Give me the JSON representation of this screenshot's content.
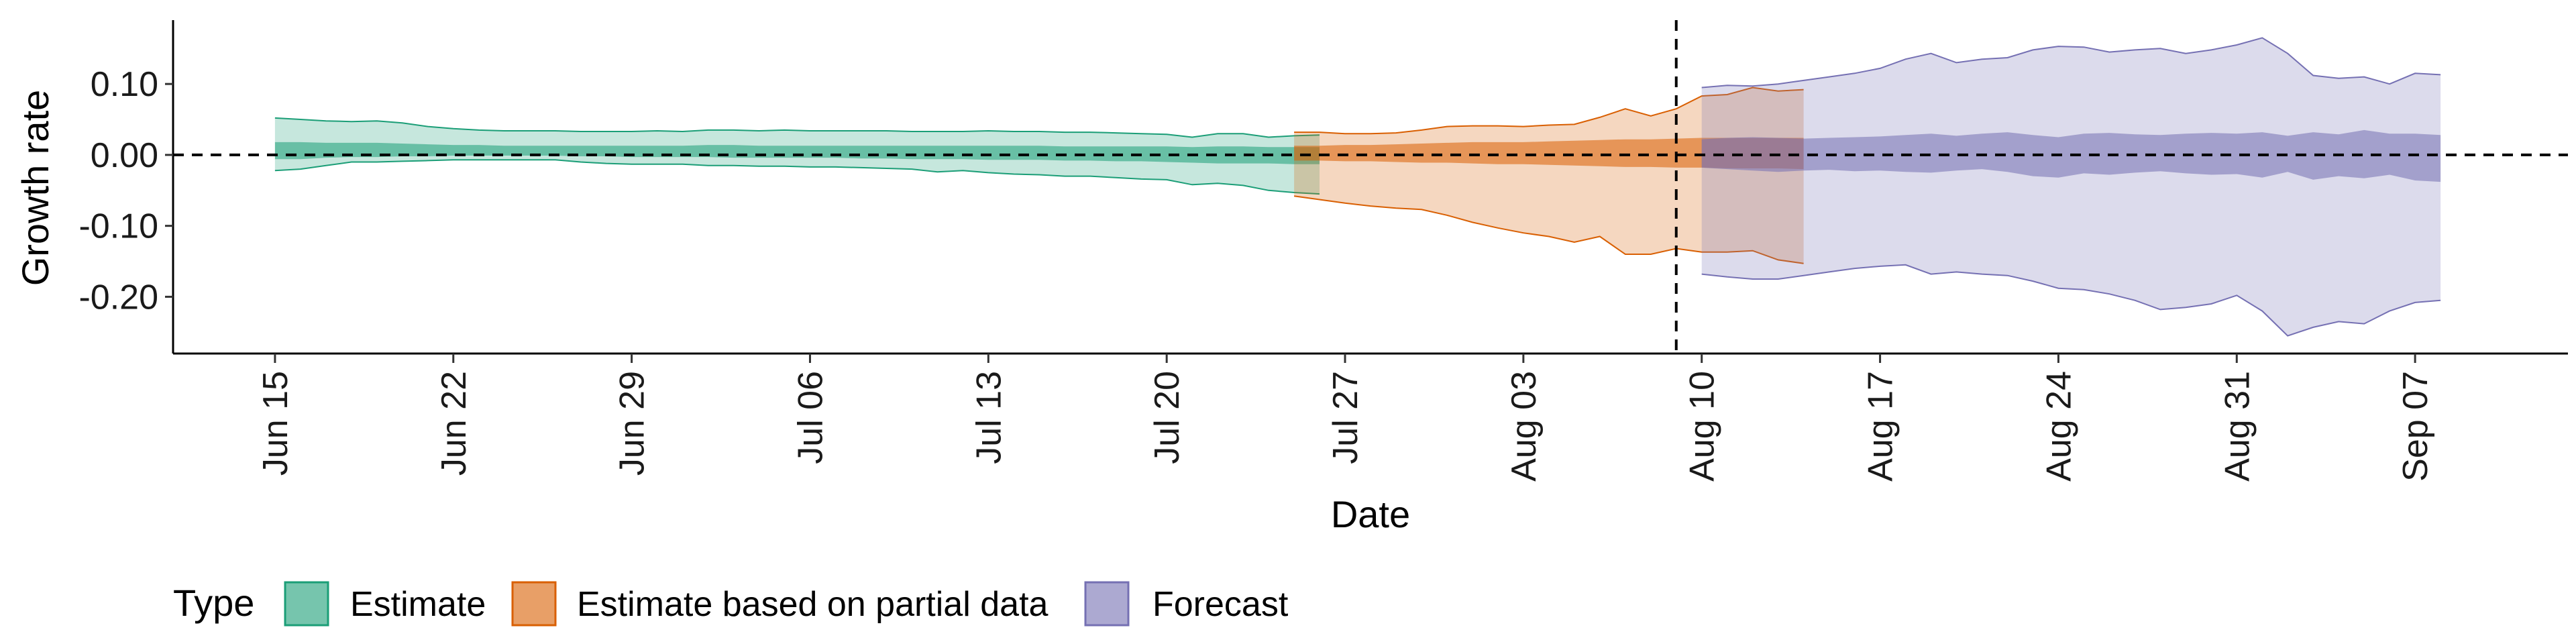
{
  "chart_data": {
    "type": "area",
    "xlabel": "Date",
    "ylabel": "Growth rate",
    "x_ticks": [
      "Jun 15",
      "Jun 22",
      "Jun 29",
      "Jul 06",
      "Jul 13",
      "Jul 20",
      "Jul 27",
      "Aug 03",
      "Aug 10",
      "Aug 17",
      "Aug 24",
      "Aug 31",
      "Sep 07"
    ],
    "y_ticks": [
      "0.10",
      "0.00",
      "-0.10",
      "-0.20"
    ],
    "y_tick_values": [
      0.1,
      0.0,
      -0.1,
      -0.2
    ],
    "xlim": [
      "2020-06-11",
      "2020-09-13"
    ],
    "ylim": [
      -0.28,
      0.19
    ],
    "reference_lines": {
      "horizontal_y": 0.0,
      "vertical_date": "2020-08-09"
    },
    "grid": false,
    "legend": {
      "title": "Type",
      "position": "bottom-left"
    },
    "series": [
      {
        "name": "Estimate",
        "fill": "#1b9e77",
        "start_date": "2020-06-15",
        "outer_upper": [
          0.052,
          0.05,
          0.048,
          0.047,
          0.048,
          0.045,
          0.04,
          0.037,
          0.035,
          0.034,
          0.034,
          0.034,
          0.033,
          0.033,
          0.033,
          0.034,
          0.033,
          0.035,
          0.035,
          0.034,
          0.035,
          0.034,
          0.034,
          0.034,
          0.034,
          0.033,
          0.033,
          0.033,
          0.034,
          0.033,
          0.033,
          0.032,
          0.032,
          0.031,
          0.03,
          0.029,
          0.025,
          0.03,
          0.03,
          0.025,
          0.027,
          0.028
        ],
        "inner_upper": [
          0.018,
          0.018,
          0.017,
          0.017,
          0.017,
          0.016,
          0.015,
          0.014,
          0.014,
          0.013,
          0.013,
          0.013,
          0.013,
          0.013,
          0.013,
          0.013,
          0.013,
          0.014,
          0.014,
          0.013,
          0.013,
          0.013,
          0.013,
          0.013,
          0.013,
          0.013,
          0.013,
          0.013,
          0.013,
          0.013,
          0.013,
          0.012,
          0.012,
          0.012,
          0.012,
          0.012,
          0.011,
          0.012,
          0.012,
          0.011,
          0.011,
          0.011
        ],
        "inner_lower": [
          -0.006,
          -0.006,
          -0.004,
          -0.003,
          -0.003,
          -0.002,
          -0.002,
          -0.001,
          -0.001,
          -0.001,
          -0.001,
          -0.001,
          -0.002,
          -0.002,
          -0.003,
          -0.003,
          -0.003,
          -0.003,
          -0.004,
          -0.004,
          -0.004,
          -0.004,
          -0.004,
          -0.005,
          -0.005,
          -0.006,
          -0.006,
          -0.006,
          -0.007,
          -0.007,
          -0.007,
          -0.008,
          -0.008,
          -0.009,
          -0.009,
          -0.01,
          -0.011,
          -0.012,
          -0.012,
          -0.012,
          -0.013,
          -0.013
        ],
        "outer_lower": [
          -0.022,
          -0.02,
          -0.015,
          -0.01,
          -0.01,
          -0.009,
          -0.008,
          -0.007,
          -0.007,
          -0.007,
          -0.007,
          -0.007,
          -0.01,
          -0.012,
          -0.013,
          -0.013,
          -0.013,
          -0.015,
          -0.015,
          -0.016,
          -0.016,
          -0.017,
          -0.017,
          -0.018,
          -0.019,
          -0.02,
          -0.024,
          -0.022,
          -0.025,
          -0.027,
          -0.028,
          -0.03,
          -0.03,
          -0.032,
          -0.034,
          -0.035,
          -0.042,
          -0.04,
          -0.043,
          -0.05,
          -0.053,
          -0.055
        ]
      },
      {
        "name": "Estimate based on partial data",
        "fill": "#d95f02",
        "start_date": "2020-07-25",
        "outer_upper": [
          0.032,
          0.032,
          0.03,
          0.03,
          0.031,
          0.035,
          0.04,
          0.041,
          0.041,
          0.04,
          0.042,
          0.043,
          0.053,
          0.065,
          0.055,
          0.065,
          0.083,
          0.085,
          0.095,
          0.09,
          0.092
        ],
        "inner_upper": [
          0.013,
          0.013,
          0.014,
          0.014,
          0.015,
          0.016,
          0.017,
          0.018,
          0.018,
          0.018,
          0.019,
          0.02,
          0.021,
          0.022,
          0.022,
          0.023,
          0.024,
          0.024,
          0.024,
          0.024,
          0.024
        ],
        "inner_lower": [
          -0.008,
          -0.008,
          -0.009,
          -0.009,
          -0.01,
          -0.011,
          -0.011,
          -0.012,
          -0.013,
          -0.013,
          -0.014,
          -0.015,
          -0.016,
          -0.017,
          -0.017,
          -0.018,
          -0.018,
          -0.019,
          -0.019,
          -0.019,
          -0.02
        ],
        "outer_lower": [
          -0.058,
          -0.063,
          -0.068,
          -0.072,
          -0.075,
          -0.077,
          -0.085,
          -0.095,
          -0.103,
          -0.11,
          -0.115,
          -0.123,
          -0.115,
          -0.14,
          -0.14,
          -0.132,
          -0.137,
          -0.137,
          -0.135,
          -0.148,
          -0.153
        ]
      },
      {
        "name": "Forecast",
        "fill": "#7570b3",
        "start_date": "2020-08-10",
        "outer_upper": [
          0.095,
          0.098,
          0.097,
          0.1,
          0.105,
          0.11,
          0.115,
          0.122,
          0.135,
          0.143,
          0.13,
          0.135,
          0.137,
          0.148,
          0.153,
          0.152,
          0.145,
          0.148,
          0.15,
          0.143,
          0.148,
          0.155,
          0.165,
          0.143,
          0.112,
          0.108,
          0.11,
          0.1,
          0.115,
          0.113
        ],
        "inner_upper": [
          0.022,
          0.024,
          0.025,
          0.024,
          0.023,
          0.024,
          0.025,
          0.026,
          0.028,
          0.03,
          0.027,
          0.03,
          0.032,
          0.028,
          0.025,
          0.03,
          0.031,
          0.029,
          0.028,
          0.03,
          0.031,
          0.03,
          0.032,
          0.027,
          0.032,
          0.029,
          0.035,
          0.03,
          0.03,
          0.028
        ],
        "inner_lower": [
          -0.018,
          -0.02,
          -0.022,
          -0.024,
          -0.022,
          -0.021,
          -0.023,
          -0.022,
          -0.024,
          -0.025,
          -0.022,
          -0.02,
          -0.024,
          -0.03,
          -0.032,
          -0.026,
          -0.028,
          -0.025,
          -0.023,
          -0.026,
          -0.028,
          -0.027,
          -0.032,
          -0.024,
          -0.035,
          -0.03,
          -0.033,
          -0.028,
          -0.036,
          -0.038
        ],
        "outer_lower": [
          -0.168,
          -0.172,
          -0.175,
          -0.175,
          -0.17,
          -0.165,
          -0.16,
          -0.157,
          -0.155,
          -0.168,
          -0.165,
          -0.168,
          -0.17,
          -0.178,
          -0.188,
          -0.19,
          -0.196,
          -0.205,
          -0.218,
          -0.215,
          -0.21,
          -0.198,
          -0.22,
          -0.255,
          -0.243,
          -0.235,
          -0.238,
          -0.22,
          -0.208,
          -0.205
        ]
      }
    ]
  }
}
